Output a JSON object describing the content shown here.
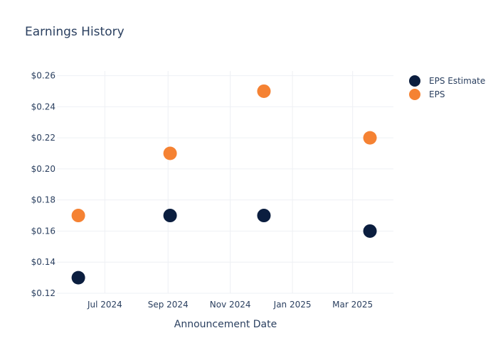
{
  "chart_data": {
    "type": "scatter",
    "title": "Earnings History",
    "xlabel": "Announcement Date",
    "ylabel": "",
    "x_tick_labels": [
      "Jul 2024",
      "Sep 2024",
      "Nov 2024",
      "Jan 2025",
      "Mar 2025"
    ],
    "x_ticks": [
      "2024-07-01",
      "2024-09-01",
      "2024-11-01",
      "2025-01-01",
      "2025-03-01"
    ],
    "xlim": [
      "2024-05-15",
      "2025-04-10"
    ],
    "y_tick_labels": [
      "$0.12",
      "$0.14",
      "$0.16",
      "$0.18",
      "$0.20",
      "$0.22",
      "$0.24",
      "$0.26"
    ],
    "y_ticks": [
      0.12,
      0.14,
      0.16,
      0.18,
      0.2,
      0.22,
      0.24,
      0.26
    ],
    "ylim": [
      0.12,
      0.263
    ],
    "grid": true,
    "legend_position": "top-right",
    "x": [
      "2024-06-05",
      "2024-09-03",
      "2024-12-04",
      "2025-03-18"
    ],
    "series": [
      {
        "name": "EPS Estimate",
        "color": "#0b1e3f",
        "values": [
          0.13,
          0.17,
          0.17,
          0.16
        ]
      },
      {
        "name": "EPS",
        "color": "#f58233",
        "values": [
          0.17,
          0.21,
          0.25,
          0.22
        ]
      }
    ]
  }
}
